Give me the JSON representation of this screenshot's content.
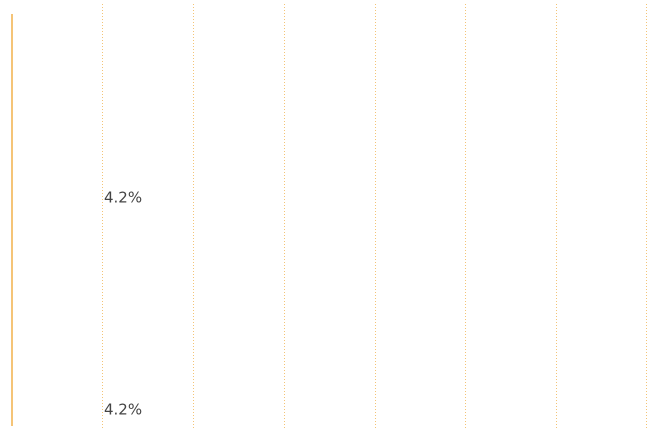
{
  "labels": [
    "4.2%",
    "4.2%"
  ]
}
